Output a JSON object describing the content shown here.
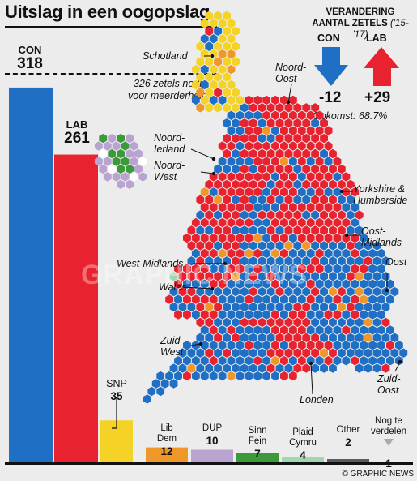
{
  "title": "Uitslag in een oogopslag",
  "change": {
    "heading_line1": "VERANDERING",
    "heading_line2": "AANTAL ZETELS",
    "period": "('15-'17)",
    "con_label": "CON",
    "con_delta": "-12",
    "lab_label": "LAB",
    "lab_delta": "+29"
  },
  "turnout": "Opkomst: 68.7%",
  "majority_label_line1": "326 zetels nodig",
  "majority_label_line2": "voor meerderheid",
  "majority_seats": 326,
  "parties": [
    {
      "name": "CON",
      "seats": 318,
      "color": "#1f6fc4"
    },
    {
      "name": "LAB",
      "seats": 261,
      "color": "#e8232f"
    },
    {
      "name": "SNP",
      "seats": 35,
      "color": "#f5d226"
    },
    {
      "name": "Lib Dem",
      "seats": 12,
      "color": "#f0972a"
    },
    {
      "name": "DUP",
      "seats": 10,
      "color": "#b9a3d0"
    },
    {
      "name": "Sinn Fein",
      "seats": 7,
      "color": "#3c9a3a"
    },
    {
      "name": "Plaid Cymru",
      "seats": 4,
      "color": "#9fd8b0"
    },
    {
      "name": "Other",
      "seats": 2,
      "color": "#5a5a5a"
    },
    {
      "name": "Nog te verdelen",
      "seats": 1,
      "color": "#cccccc"
    }
  ],
  "small_labels": {
    "snp": "SNP",
    "snp_n": "35",
    "libdem": "Lib\nDem",
    "libdem_n": "12",
    "dup": "DUP",
    "dup_n": "10",
    "sinnfein": "Sinn\nFein",
    "sinnfein_n": "7",
    "plaid": "Plaid\nCymru",
    "plaid_n": "4",
    "other": "Other",
    "other_n": "2",
    "tbd": "Nog te\nverdelen",
    "tbd_n": "1"
  },
  "regions": {
    "schotland": "Schotland",
    "noord_oost": "Noord-\nOost",
    "noord_ierland": "Noord-\nIerland",
    "noord_west": "Noord-\nWest",
    "yorkshire": "Yorkshire &\nHumberside",
    "oost_midlands": "Oost-\nMidlands",
    "west_midlands": "West-Midlands",
    "oost": "Oost",
    "wales": "Wales",
    "zuid_west": "Zuid-\nWest",
    "zuid_oost": "Zuid-\nOost",
    "londen": "Londen"
  },
  "credit": "© GRAPHIC NEWS",
  "watermark": "GRAPHIC NEWS",
  "colors": {
    "con": "#1f6fc4",
    "lab": "#e8232f",
    "snp": "#f5d226",
    "ld": "#f0972a",
    "dup": "#b9a3d0",
    "sf": "#3c9a3a",
    "pc": "#9fd8b0",
    "oth": "#5a5a5a"
  }
}
